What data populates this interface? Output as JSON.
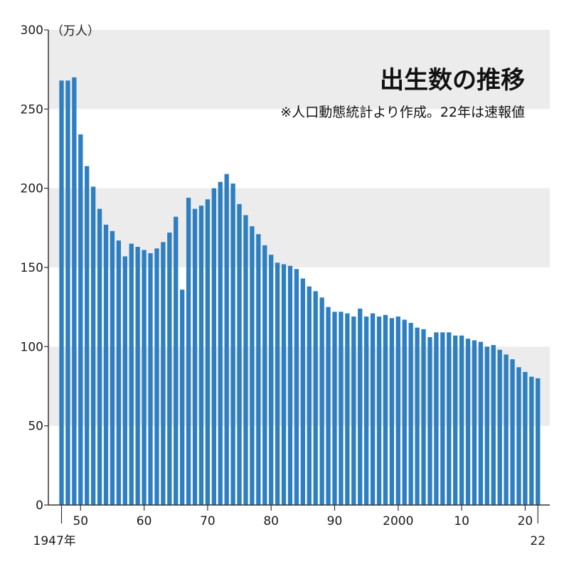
{
  "chart_data": {
    "type": "bar",
    "title": "出生数の推移",
    "subtitle": "※人口動態統計より作成。22年は速報値",
    "unit_label": "（万人）",
    "ylim": [
      0,
      300
    ],
    "y_ticks": [
      "0",
      "50",
      "100",
      "150",
      "200",
      "250",
      "300"
    ],
    "x_tick_labels": [
      {
        "year": 1947,
        "label": "1947年"
      },
      {
        "year": 1950,
        "label": "50"
      },
      {
        "year": 1960,
        "label": "60"
      },
      {
        "year": 1970,
        "label": "70"
      },
      {
        "year": 1980,
        "label": "80"
      },
      {
        "year": 1990,
        "label": "90"
      },
      {
        "year": 2000,
        "label": "2000"
      },
      {
        "year": 2010,
        "label": "10"
      },
      {
        "year": 2020,
        "label": "20"
      },
      {
        "year": 2022,
        "label": "22"
      }
    ],
    "grid": "alternating horizontal bands",
    "colors": {
      "bar": "#2d7fc1",
      "band": "#ececec",
      "axis": "#333333",
      "text": "#111111"
    },
    "categories": [
      1947,
      1948,
      1949,
      1950,
      1951,
      1952,
      1953,
      1954,
      1955,
      1956,
      1957,
      1958,
      1959,
      1960,
      1961,
      1962,
      1963,
      1964,
      1965,
      1966,
      1967,
      1968,
      1969,
      1970,
      1971,
      1972,
      1973,
      1974,
      1975,
      1976,
      1977,
      1978,
      1979,
      1980,
      1981,
      1982,
      1983,
      1984,
      1985,
      1986,
      1987,
      1988,
      1989,
      1990,
      1991,
      1992,
      1993,
      1994,
      1995,
      1996,
      1997,
      1998,
      1999,
      2000,
      2001,
      2002,
      2003,
      2004,
      2005,
      2006,
      2007,
      2008,
      2009,
      2010,
      2011,
      2012,
      2013,
      2014,
      2015,
      2016,
      2017,
      2018,
      2019,
      2020,
      2021,
      2022
    ],
    "values": [
      268,
      268,
      270,
      234,
      214,
      201,
      187,
      177,
      173,
      167,
      157,
      165,
      163,
      161,
      159,
      162,
      166,
      172,
      182,
      136,
      194,
      187,
      189,
      193,
      200,
      204,
      209,
      203,
      190,
      183,
      176,
      171,
      164,
      158,
      153,
      152,
      151,
      149,
      143,
      138,
      135,
      131,
      125,
      122,
      122,
      121,
      119,
      124,
      119,
      121,
      119,
      120,
      118,
      119,
      117,
      115,
      112,
      111,
      106,
      109,
      109,
      109,
      107,
      107,
      105,
      104,
      103,
      100,
      101,
      98,
      95,
      92,
      87,
      84,
      81,
      80
    ]
  }
}
